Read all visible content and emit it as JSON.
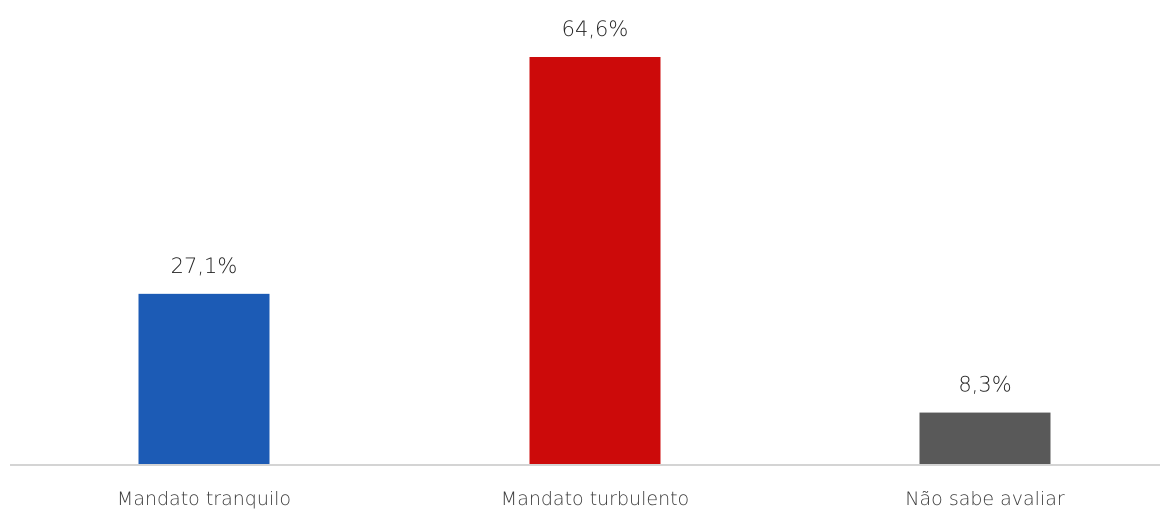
{
  "chart_data": {
    "type": "bar",
    "categories": [
      "Mandato tranquilo",
      "Mandato turbulento",
      "Não sabe avaliar"
    ],
    "values": [
      27.1,
      64.6,
      8.3
    ],
    "value_labels": [
      "27,1%",
      "64,6%",
      "8,3%"
    ],
    "unit": "%",
    "colors": [
      "#1c5bb5",
      "#cc0a0a",
      "#595959"
    ],
    "title": "",
    "xlabel": "",
    "ylabel": "",
    "ylim": [
      0,
      64.6
    ],
    "grid": false,
    "legend": "none"
  }
}
